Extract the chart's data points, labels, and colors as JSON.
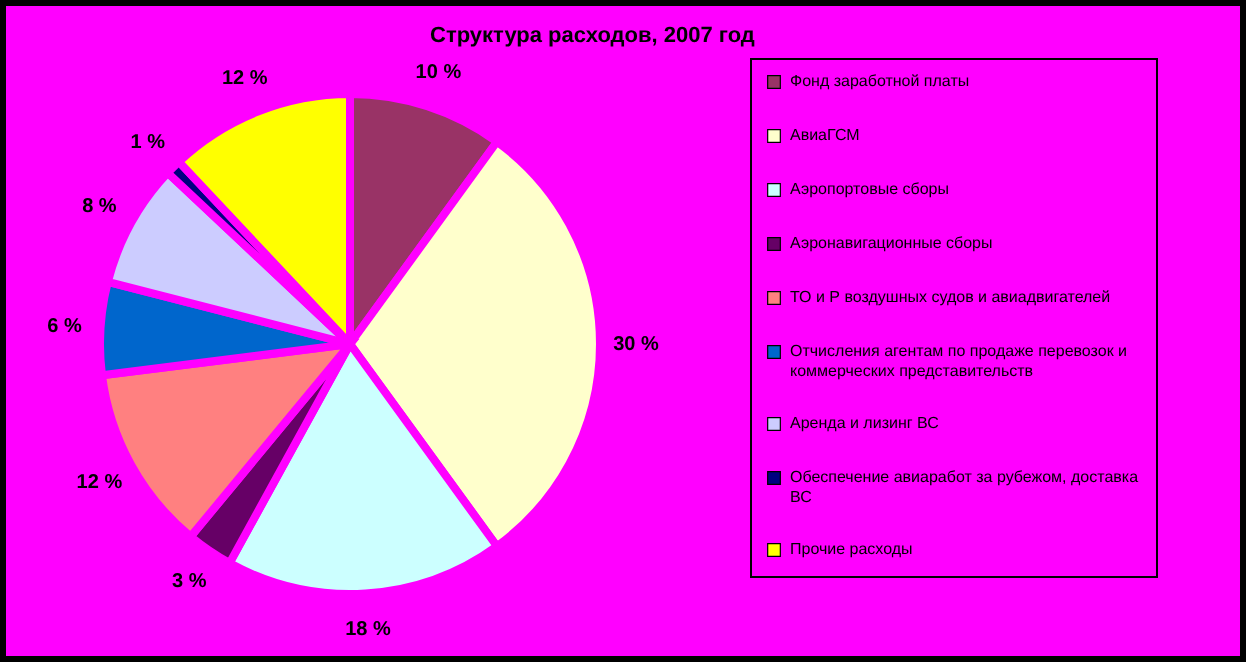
{
  "chart_data": {
    "type": "pie",
    "title": "Структура расходов, 2007 год",
    "categories": [
      "Фонд заработной платы",
      "АвиаГСМ",
      "Аэропортовые сборы",
      "Аэронавигационные сборы",
      "ТО и Р воздушных судов и авиадвигателей",
      "Отчисления агентам по продаже перевозок и коммерческих представительств",
      "Аренда и лизинг ВС",
      "Обеспечение авиаработ за рубежом, доставка ВС",
      "Прочие расходы"
    ],
    "values": [
      10,
      30,
      18,
      3,
      12,
      6,
      8,
      1,
      12
    ],
    "colors": [
      "#993366",
      "#ffffcc",
      "#ccffff",
      "#660066",
      "#ff8080",
      "#0066cc",
      "#ccccff",
      "#000080",
      "#ffff00"
    ],
    "value_labels": [
      "10 %",
      "30 %",
      "18 %",
      "3 %",
      "12 %",
      "6 %",
      "8 %",
      "1 %",
      "12 %"
    ],
    "legend": "right"
  }
}
